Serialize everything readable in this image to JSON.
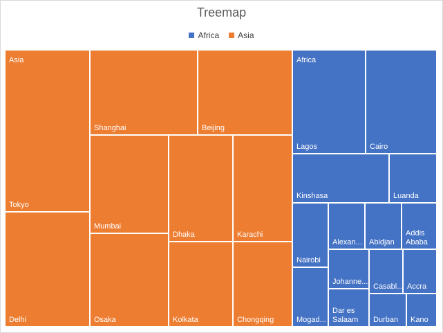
{
  "chart_data": {
    "type": "treemap",
    "title": "Treemap",
    "legend": [
      {
        "name": "Africa",
        "color": "#4472C4"
      },
      {
        "name": "Asia",
        "color": "#ED7D31"
      }
    ],
    "legend_position": "top",
    "groups": [
      {
        "name": "Asia",
        "color": "#ED7D31",
        "items": [
          {
            "label": "Tokyo"
          },
          {
            "label": "Delhi"
          },
          {
            "label": "Shanghai"
          },
          {
            "label": "Beijing"
          },
          {
            "label": "Mumbai"
          },
          {
            "label": "Osaka"
          },
          {
            "label": "Dhaka"
          },
          {
            "label": "Karachi"
          },
          {
            "label": "Kolkata"
          },
          {
            "label": "Chongqing"
          }
        ]
      },
      {
        "name": "Africa",
        "color": "#4472C4",
        "items": [
          {
            "label": "Lagos"
          },
          {
            "label": "Cairo"
          },
          {
            "label": "Kinshasa"
          },
          {
            "label": "Luanda"
          },
          {
            "label": "Nairobi"
          },
          {
            "label": "Alexan..."
          },
          {
            "label": "Abidjan"
          },
          {
            "label": [
              "Addis",
              "Ababa"
            ]
          },
          {
            "label": "Mogad..."
          },
          {
            "label": "Johanne..."
          },
          {
            "label": [
              "Dar es",
              "Salaam"
            ]
          },
          {
            "label": "Casabl..."
          },
          {
            "label": "Accra"
          },
          {
            "label": "Durban"
          },
          {
            "label": "Kano"
          }
        ]
      }
    ]
  }
}
